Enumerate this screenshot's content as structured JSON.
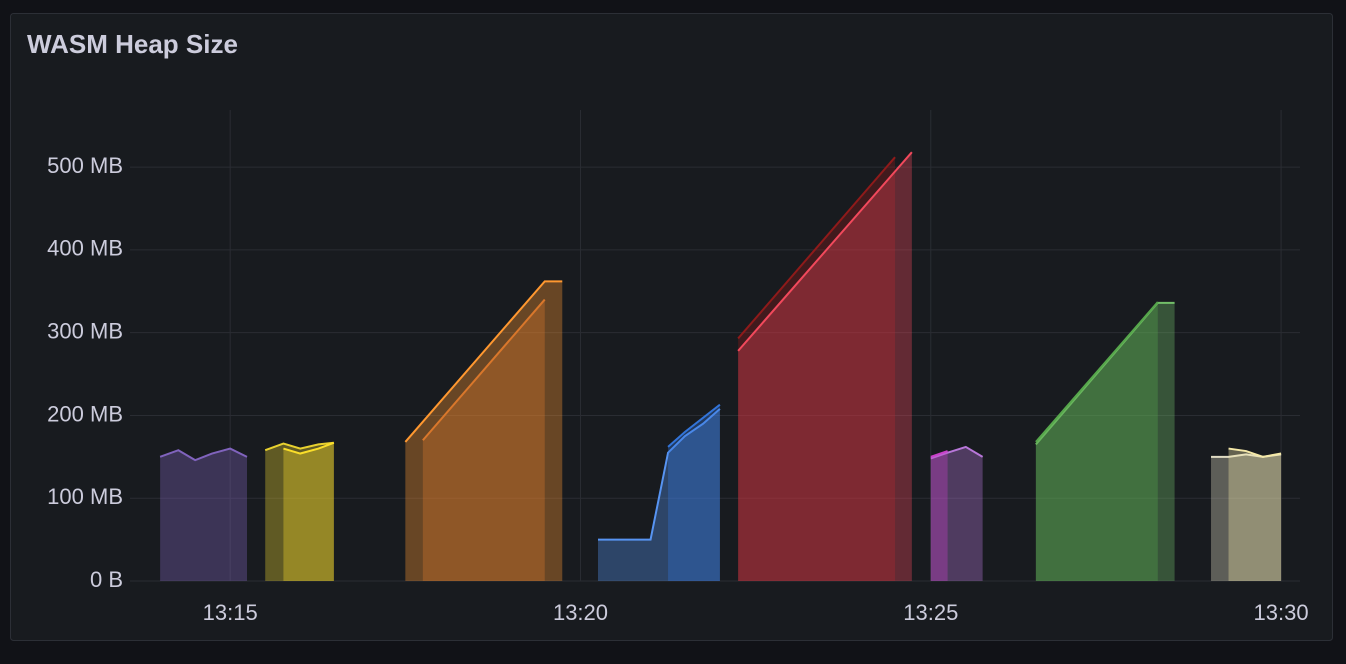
{
  "chart_data": {
    "type": "area",
    "title": "WASM Heap Size",
    "xlim": [
      13.57,
      30.27
    ],
    "xticks": [
      {
        "value": 15,
        "label": "13:15"
      },
      {
        "value": 20,
        "label": "13:20"
      },
      {
        "value": 25,
        "label": "13:25"
      },
      {
        "value": 30,
        "label": "13:30"
      }
    ],
    "ylim": [
      0,
      569
    ],
    "yticks": [
      {
        "value": 0,
        "label": "0 B"
      },
      {
        "value": 100,
        "label": "100 MB"
      },
      {
        "value": 200,
        "label": "200 MB"
      },
      {
        "value": 300,
        "label": "300 MB"
      },
      {
        "value": 400,
        "label": "400 MB"
      },
      {
        "value": 500,
        "label": "500 MB"
      }
    ],
    "grid": true,
    "series": [
      {
        "color": "#8063bd",
        "x": [
          14.0,
          14.26,
          14.5,
          14.74,
          15.0,
          15.24
        ],
        "values": [
          150,
          158,
          146,
          154,
          160,
          150
        ]
      },
      {
        "color": "#e8d12f",
        "x": [
          15.5,
          15.76,
          16.0,
          16.26,
          16.48
        ],
        "values": [
          158,
          166,
          160,
          165,
          167
        ]
      },
      {
        "color": "#fade2a",
        "x": [
          15.76,
          16.0,
          16.26,
          16.48
        ],
        "values": [
          160,
          154,
          160,
          167
        ]
      },
      {
        "color": "#ff9830",
        "x": [
          17.5,
          19.49,
          19.74
        ],
        "values": [
          168,
          362,
          362
        ]
      },
      {
        "color": "#d9772b",
        "x": [
          17.75,
          19.49
        ],
        "values": [
          170,
          340
        ]
      },
      {
        "color": "#5794f2",
        "x": [
          20.25,
          21.0,
          21.25,
          21.49,
          21.75,
          21.99
        ],
        "values": [
          50,
          50,
          155,
          175,
          190,
          208
        ]
      },
      {
        "color": "#3274d9",
        "x": [
          21.25,
          21.49,
          21.99
        ],
        "values": [
          162,
          180,
          213
        ]
      },
      {
        "color": "#8f1a1a",
        "x": [
          22.25,
          24.49
        ],
        "values": [
          293,
          512
        ]
      },
      {
        "color": "#f2495c",
        "x": [
          22.25,
          24.73
        ],
        "values": [
          278,
          518
        ]
      },
      {
        "color": "#b877d9",
        "x": [
          25.0,
          25.24,
          25.5,
          25.74
        ],
        "values": [
          148,
          155,
          162,
          150
        ]
      },
      {
        "color": "#c940c9",
        "x": [
          25.0,
          25.24
        ],
        "values": [
          150,
          157
        ]
      },
      {
        "color": "#73bf69",
        "x": [
          26.5,
          28.24,
          28.48
        ],
        "values": [
          165,
          336,
          336
        ]
      },
      {
        "color": "#56a64b",
        "x": [
          26.5,
          28.24
        ],
        "values": [
          168,
          337
        ]
      },
      {
        "color": "#e0dcc4",
        "x": [
          29.0,
          29.25,
          29.5,
          29.74,
          30.0
        ],
        "values": [
          150,
          150,
          153,
          150,
          153
        ]
      },
      {
        "color": "#f4e8a8",
        "x": [
          29.25,
          29.5,
          29.74,
          30.0
        ],
        "values": [
          160,
          157,
          150,
          154
        ]
      }
    ]
  }
}
